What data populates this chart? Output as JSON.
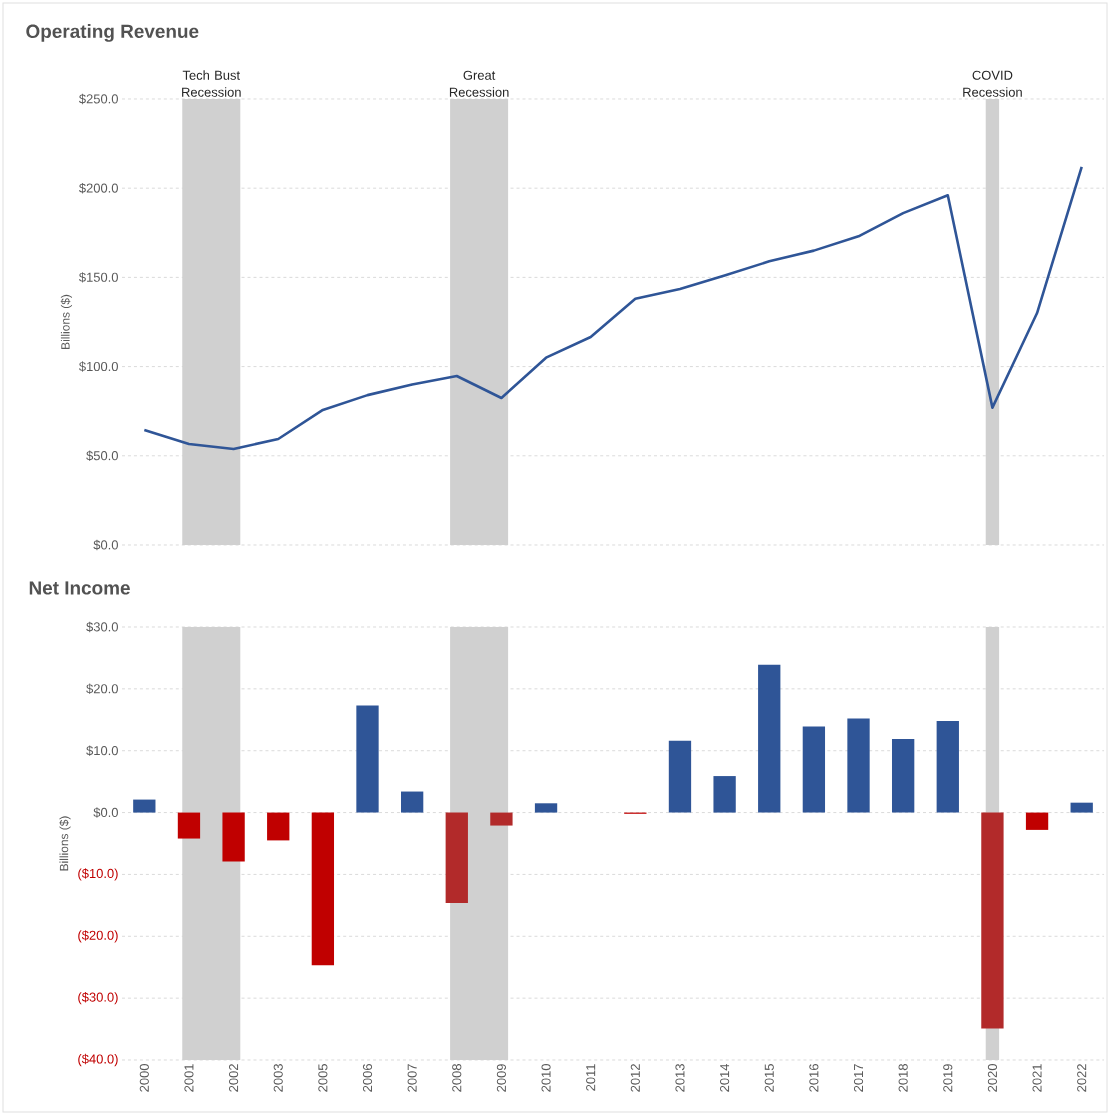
{
  "chart_data": [
    {
      "type": "line",
      "title": "Operating Revenue",
      "ylabel": "Billions ($)",
      "categories": [
        "2000",
        "2001",
        "2002",
        "2003",
        "2005",
        "2006",
        "2007",
        "2008",
        "2009",
        "2010",
        "2011",
        "2012",
        "2013",
        "2014",
        "2015",
        "2016",
        "2017",
        "2018",
        "2019",
        "2020",
        "2021",
        "2022"
      ],
      "series": [
        {
          "color": "#2f5597",
          "values": [
            64.5,
            56.6,
            53.8,
            59.4,
            75.7,
            84,
            90,
            94.7,
            82.4,
            105,
            116.6,
            138,
            143.5,
            151,
            159,
            165,
            173,
            186,
            196,
            77,
            130,
            212
          ]
        }
      ],
      "ylim": [
        0,
        250
      ],
      "yticks": [
        {
          "value": 0,
          "label": "$0.0"
        },
        {
          "value": 50,
          "label": "$50.0"
        },
        {
          "value": 100,
          "label": "$100.0"
        },
        {
          "value": 150,
          "label": "$150.0"
        },
        {
          "value": 200,
          "label": "$200.0"
        },
        {
          "value": 250,
          "label": "$250.0"
        }
      ],
      "grid": "y",
      "tick_labels": "y",
      "bands": [
        {
          "axis": "x",
          "from": "2001",
          "to": "2002",
          "label": "Tech Bust Recession",
          "color": "#d0d0d0"
        },
        {
          "axis": "x",
          "from": "2008",
          "to": "2009",
          "label": "Great Recession",
          "color": "#d0d0d0"
        },
        {
          "axis": "x",
          "from": "2020",
          "to": "2020",
          "label": "COVID Recession",
          "color": "#d0d0d0"
        }
      ]
    },
    {
      "type": "bar",
      "title": "Net Income",
      "ylabel": "Billions ($)",
      "categories": [
        "2000",
        "2001",
        "2002",
        "2003",
        "2005",
        "2006",
        "2007",
        "2008",
        "2009",
        "2010",
        "2011",
        "2012",
        "2013",
        "2014",
        "2015",
        "2016",
        "2017",
        "2018",
        "2019",
        "2020",
        "2021",
        "2022"
      ],
      "values": [
        2.1,
        -4.2,
        -7.9,
        -4.5,
        -24.7,
        17.3,
        3.4,
        -14.6,
        -2.1,
        1.5,
        0,
        -0.2,
        11.6,
        5.9,
        23.9,
        13.9,
        15.2,
        11.9,
        14.8,
        -34.9,
        -2.8,
        1.6
      ],
      "colors": [
        "#2f5597",
        "#c00000",
        "#c00000",
        "#c00000",
        "#c00000",
        "#2f5597",
        "#2f5597",
        "#b22a2a",
        "#b22a2a",
        "#2f5597",
        "#2f5597",
        "#c00000",
        "#2f5597",
        "#2f5597",
        "#2f5597",
        "#2f5597",
        "#2f5597",
        "#2f5597",
        "#2f5597",
        "#b22a2a",
        "#c00000",
        "#2f5597"
      ],
      "ylim": [
        -40,
        30
      ],
      "yticks": [
        {
          "value": -40,
          "label": "($40.0)"
        },
        {
          "value": -30,
          "label": "($30.0)"
        },
        {
          "value": -20,
          "label": "($20.0)"
        },
        {
          "value": -10,
          "label": "($10.0)"
        },
        {
          "value": 0,
          "label": "$0.0"
        },
        {
          "value": 10,
          "label": "$10.0"
        },
        {
          "value": 20,
          "label": "$20.0"
        },
        {
          "value": 30,
          "label": "$30.0"
        }
      ],
      "grid": "y",
      "bands": [
        {
          "axis": "x",
          "from": "2001",
          "to": "2002",
          "color": "#d0d0d0"
        },
        {
          "axis": "x",
          "from": "2008",
          "to": "2009",
          "color": "#d0d0d0"
        },
        {
          "axis": "x",
          "from": "2020",
          "to": "2020",
          "color": "#d0d0d0"
        }
      ]
    }
  ]
}
